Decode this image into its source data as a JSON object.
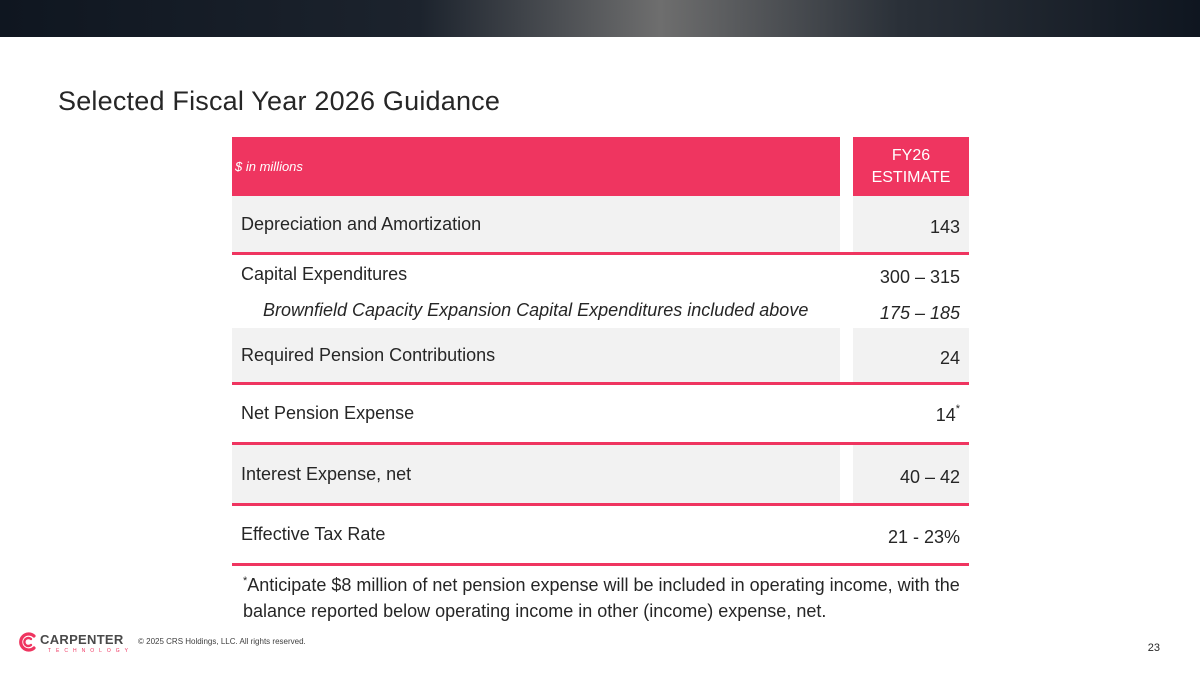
{
  "header": {
    "title": "Selected Fiscal Year 2026 Guidance"
  },
  "table": {
    "units_label": "$ in millions",
    "col_header_line1": "FY26",
    "col_header_line2": "ESTIMATE",
    "rows": [
      {
        "label": "Depreciation and Amortization",
        "value": "143"
      },
      {
        "label": "Capital Expenditures",
        "value": "300 – 315"
      },
      {
        "label": "Brownfield Capacity Expansion Capital Expenditures included above",
        "value": "175 – 185"
      },
      {
        "label": "Required Pension Contributions",
        "value": "24"
      },
      {
        "label": "Net Pension Expense",
        "value": "14",
        "footnote_mark": "*"
      },
      {
        "label": "Interest Expense, net",
        "value": "40 – 42"
      },
      {
        "label": "Effective Tax Rate",
        "value": "21 - 23%"
      }
    ]
  },
  "footnote": {
    "mark": "*",
    "text": "Anticipate $8 million of net pension expense will be included in operating income, with the balance reported below operating income in other (income) expense, net."
  },
  "footer": {
    "logo_word": "CARPENTER",
    "logo_sub": "TECHNOLOGY",
    "copyright": "© 2025 CRS Holdings, LLC. All rights reserved.",
    "page_number": "23"
  },
  "colors": {
    "accent": "#ef3560",
    "row_shade": "#f2f2f2",
    "text": "#262626"
  }
}
